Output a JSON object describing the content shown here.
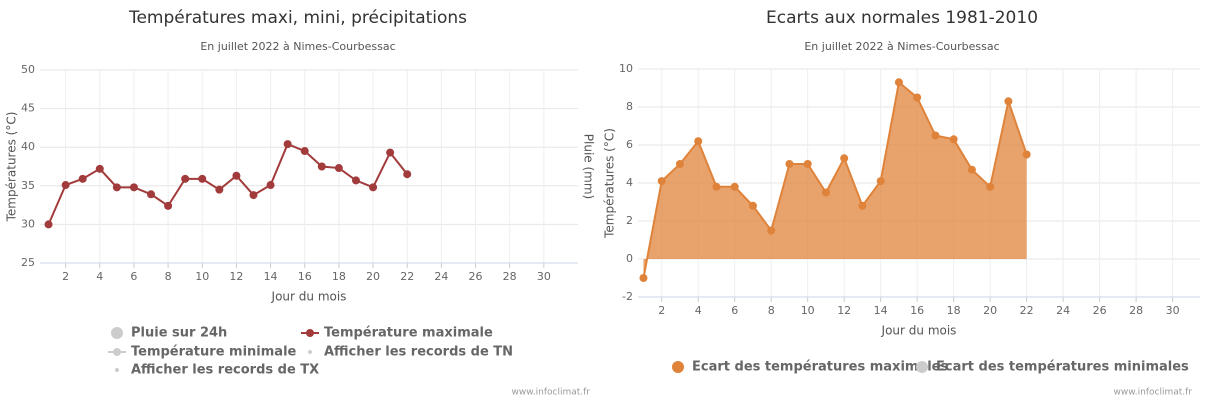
{
  "chart_data": [
    {
      "type": "line",
      "title": "Températures maxi, mini, précipitations",
      "subtitle": "En juillet 2022 à Nimes-Courbessac",
      "x_label": "Jour du mois",
      "y_label": "Températures (°C)",
      "y2_label": "Pluie (mm)",
      "x": [
        1,
        2,
        3,
        4,
        5,
        6,
        7,
        8,
        9,
        10,
        11,
        12,
        13,
        14,
        15,
        16,
        17,
        18,
        19,
        20,
        21,
        22
      ],
      "series": [
        {
          "name": "Pluie sur 24h",
          "color": "#cccccc",
          "visible": false,
          "symbol": "circle"
        },
        {
          "name": "Température maximale",
          "color": "#a23b3b",
          "visible": true,
          "symbol": "line",
          "values": [
            30,
            35.1,
            35.9,
            37.2,
            34.8,
            34.8,
            33.9,
            32.4,
            35.9,
            35.9,
            34.5,
            36.3,
            33.8,
            35.1,
            40.4,
            39.5,
            37.5,
            37.3,
            35.7,
            34.8,
            39.3,
            36.5
          ]
        },
        {
          "name": "Température minimale",
          "color": "#cccccc",
          "visible": false,
          "symbol": "line"
        },
        {
          "name": "Afficher les records de TN",
          "color": "#cccccc",
          "visible": false,
          "symbol": "dot"
        },
        {
          "name": "Afficher les records de TX",
          "color": "#cccccc",
          "visible": false,
          "symbol": "dot"
        }
      ],
      "xlim": [
        0.5,
        32
      ],
      "xticks": [
        2,
        4,
        6,
        8,
        10,
        12,
        14,
        16,
        18,
        20,
        22,
        24,
        26,
        28,
        30
      ],
      "ylim": [
        25,
        50
      ],
      "yticks": [
        25,
        30,
        35,
        40,
        45,
        50
      ],
      "grid": true,
      "credits": "www.infoclimat.fr"
    },
    {
      "type": "area",
      "title": "Ecarts aux normales 1981-2010",
      "subtitle": "En juillet 2022 à Nimes-Courbessac",
      "x_label": "Jour du mois",
      "y_label": "Températures (°C)",
      "x": [
        1,
        2,
        3,
        4,
        5,
        6,
        7,
        8,
        9,
        10,
        11,
        12,
        13,
        14,
        15,
        16,
        17,
        18,
        19,
        20,
        21,
        22
      ],
      "series": [
        {
          "name": "Ecart des températures maximales",
          "color": "#e0833a",
          "visible": true,
          "symbol": "circle",
          "values": [
            -1,
            4.1,
            5,
            6.2,
            3.8,
            3.8,
            2.8,
            1.5,
            5,
            5,
            3.5,
            5.3,
            2.8,
            4.1,
            9.3,
            8.5,
            6.5,
            6.3,
            4.7,
            3.8,
            8.3,
            5.5
          ]
        },
        {
          "name": "Ecart des températures minimales",
          "color": "#cccccc",
          "visible": false,
          "symbol": "circle"
        }
      ],
      "xlim": [
        0.7,
        31.5
      ],
      "xticks": [
        2,
        4,
        6,
        8,
        10,
        12,
        14,
        16,
        18,
        20,
        22,
        24,
        26,
        28,
        30
      ],
      "ylim": [
        -2,
        10
      ],
      "yticks": [
        -2,
        0,
        2,
        4,
        6,
        8,
        10
      ],
      "grid": true,
      "credits": "www.infoclimat.fr"
    }
  ]
}
